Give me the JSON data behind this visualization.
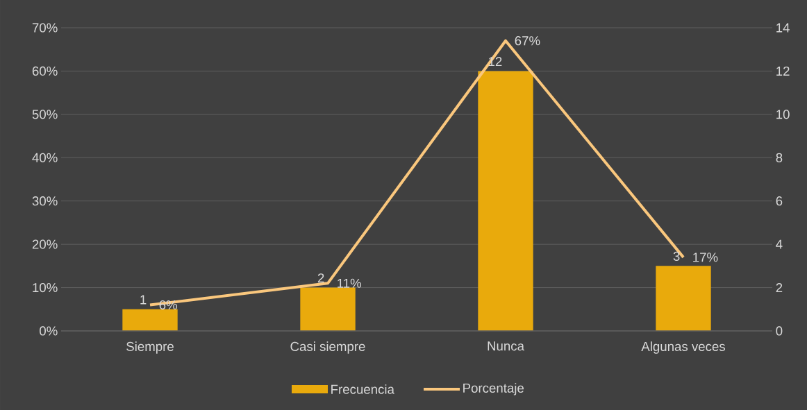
{
  "chart_data": {
    "type": "bar",
    "categories": [
      "Siempre",
      "Casi siempre",
      "Nunca",
      "Algunas veces"
    ],
    "series": [
      {
        "name": "Frecuencia",
        "axis": "y2",
        "color": "#e9aa0c",
        "values": [
          1,
          2,
          12,
          3
        ],
        "value_labels": [
          "1",
          "2",
          "12",
          "3"
        ]
      },
      {
        "name": "Porcentaje",
        "type": "line",
        "color": "#fac77d",
        "values": [
          6,
          11,
          67,
          17
        ],
        "value_labels": [
          "6%",
          "11%",
          "67%",
          "17%"
        ]
      }
    ],
    "ylim": [
      0,
      70
    ],
    "yticks": [
      {
        "value": 0,
        "label": "0%"
      },
      {
        "value": 10,
        "label": "10%"
      },
      {
        "value": 20,
        "label": "20%"
      },
      {
        "value": 30,
        "label": "30%"
      },
      {
        "value": 40,
        "label": "40%"
      },
      {
        "value": 50,
        "label": "50%"
      },
      {
        "value": 60,
        "label": "60%"
      },
      {
        "value": 70,
        "label": "70%"
      }
    ],
    "y2lim": [
      0,
      14
    ],
    "y2ticks": [
      0,
      2,
      4,
      6,
      8,
      10,
      12,
      14
    ],
    "grid": "y",
    "legend": "bottom"
  }
}
